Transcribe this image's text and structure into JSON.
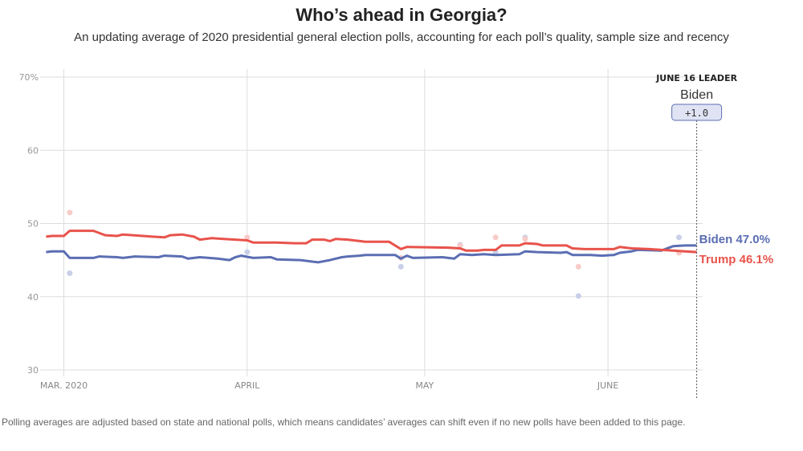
{
  "header": {
    "title": "Who’s ahead in Georgia?",
    "subtitle": "An updating average of 2020 presidential general election polls, accounting for each poll’s quality, sample size and recency"
  },
  "footnote": "Polling averages are adjusted based on state and national polls, which means candidates’ averages can shift even if no new polls have been added to this page.",
  "leader": {
    "heading": "JUNE 16 LEADER",
    "name": "Biden",
    "margin": "+1.0"
  },
  "chart_data": {
    "type": "line",
    "title": "Who’s ahead in Georgia?",
    "ylim": [
      30,
      70
    ],
    "xlim": [
      -4,
      108
    ],
    "yticks": [
      30,
      40,
      50,
      60,
      70
    ],
    "ytick_labels": [
      "30",
      "40",
      "50",
      "60",
      "70%"
    ],
    "xticks": [
      {
        "day": 0,
        "label": "MAR. 2020"
      },
      {
        "day": 31,
        "label": "APRIL"
      },
      {
        "day": 61,
        "label": "MAY"
      },
      {
        "day": 92,
        "label": "JUNE"
      }
    ],
    "grid": true,
    "colors": {
      "Biden": "#5b6eb3",
      "Trump": "#e8534b",
      "grid": "#dddddd"
    },
    "series": [
      {
        "name": "Biden",
        "color": "#5b6eb3",
        "end_label": "Biden 47.0%",
        "points": [
          [
            -3,
            46.1
          ],
          [
            -2,
            46.2
          ],
          [
            0,
            46.2
          ],
          [
            1,
            45.3
          ],
          [
            5,
            45.3
          ],
          [
            6,
            45.5
          ],
          [
            9,
            45.4
          ],
          [
            10,
            45.3
          ],
          [
            12,
            45.5
          ],
          [
            16,
            45.4
          ],
          [
            17,
            45.6
          ],
          [
            20,
            45.5
          ],
          [
            21,
            45.2
          ],
          [
            23,
            45.4
          ],
          [
            26,
            45.2
          ],
          [
            28,
            45.0
          ],
          [
            29,
            45.4
          ],
          [
            30,
            45.6
          ],
          [
            32,
            45.3
          ],
          [
            35,
            45.4
          ],
          [
            36,
            45.1
          ],
          [
            40,
            45.0
          ],
          [
            42,
            44.8
          ],
          [
            43,
            44.7
          ],
          [
            45,
            45.0
          ],
          [
            47,
            45.4
          ],
          [
            48,
            45.5
          ],
          [
            50,
            45.6
          ],
          [
            51,
            45.7
          ],
          [
            56,
            45.7
          ],
          [
            57,
            45.2
          ],
          [
            58,
            45.6
          ],
          [
            59,
            45.3
          ],
          [
            64,
            45.4
          ],
          [
            65,
            45.3
          ],
          [
            66,
            45.2
          ],
          [
            67,
            45.8
          ],
          [
            69,
            45.7
          ],
          [
            71,
            45.8
          ],
          [
            73,
            45.7
          ],
          [
            77,
            45.8
          ],
          [
            78,
            46.2
          ],
          [
            80,
            46.1
          ],
          [
            84,
            46.0
          ],
          [
            85,
            46.1
          ],
          [
            86,
            45.7
          ],
          [
            89,
            45.7
          ],
          [
            91,
            45.6
          ],
          [
            93,
            45.7
          ],
          [
            94,
            46.0
          ],
          [
            96,
            46.2
          ],
          [
            97,
            46.4
          ],
          [
            101,
            46.3
          ],
          [
            103,
            46.9
          ],
          [
            105,
            47.0
          ],
          [
            107,
            47.0
          ]
        ]
      },
      {
        "name": "Trump",
        "color": "#e8534b",
        "end_label": "Trump 46.1%",
        "points": [
          [
            -3,
            48.2
          ],
          [
            -2,
            48.3
          ],
          [
            0,
            48.3
          ],
          [
            1,
            49.0
          ],
          [
            5,
            49.0
          ],
          [
            6,
            48.7
          ],
          [
            7,
            48.4
          ],
          [
            9,
            48.3
          ],
          [
            10,
            48.5
          ],
          [
            15,
            48.2
          ],
          [
            17,
            48.1
          ],
          [
            18,
            48.4
          ],
          [
            20,
            48.5
          ],
          [
            22,
            48.2
          ],
          [
            23,
            47.8
          ],
          [
            25,
            48.0
          ],
          [
            27,
            47.9
          ],
          [
            29,
            47.8
          ],
          [
            31,
            47.7
          ],
          [
            32,
            47.4
          ],
          [
            36,
            47.4
          ],
          [
            39,
            47.3
          ],
          [
            41,
            47.3
          ],
          [
            42,
            47.8
          ],
          [
            44,
            47.8
          ],
          [
            45,
            47.6
          ],
          [
            46,
            47.9
          ],
          [
            48,
            47.8
          ],
          [
            50,
            47.6
          ],
          [
            51,
            47.5
          ],
          [
            55,
            47.5
          ],
          [
            57,
            46.5
          ],
          [
            58,
            46.8
          ],
          [
            65,
            46.7
          ],
          [
            67,
            46.6
          ],
          [
            68,
            46.3
          ],
          [
            70,
            46.3
          ],
          [
            71,
            46.4
          ],
          [
            73,
            46.4
          ],
          [
            74,
            47.0
          ],
          [
            76,
            47.0
          ],
          [
            77,
            47.0
          ],
          [
            78,
            47.3
          ],
          [
            80,
            47.2
          ],
          [
            81,
            47.0
          ],
          [
            85,
            47.0
          ],
          [
            86,
            46.6
          ],
          [
            88,
            46.5
          ],
          [
            91,
            46.5
          ],
          [
            93,
            46.5
          ],
          [
            94,
            46.8
          ],
          [
            96,
            46.6
          ],
          [
            99,
            46.5
          ],
          [
            101,
            46.4
          ],
          [
            103,
            46.3
          ],
          [
            105,
            46.2
          ],
          [
            107,
            46.1
          ]
        ]
      }
    ],
    "polls": [
      {
        "candidate": "Biden",
        "day": 1,
        "value": 43.2
      },
      {
        "candidate": "Trump",
        "day": 1,
        "value": 51.5
      },
      {
        "candidate": "Biden",
        "day": 31,
        "value": 46.1
      },
      {
        "candidate": "Trump",
        "day": 31,
        "value": 48.1
      },
      {
        "candidate": "Biden",
        "day": 57,
        "value": 44.1
      },
      {
        "candidate": "Trump",
        "day": 57,
        "value": 45.3
      },
      {
        "candidate": "Biden",
        "day": 67,
        "value": 47.1
      },
      {
        "candidate": "Trump",
        "day": 67,
        "value": 47.0
      },
      {
        "candidate": "Trump",
        "day": 73,
        "value": 48.1
      },
      {
        "candidate": "Biden",
        "day": 73,
        "value": 46.1
      },
      {
        "candidate": "Biden",
        "day": 78,
        "value": 48.1
      },
      {
        "candidate": "Trump",
        "day": 78,
        "value": 47.9
      },
      {
        "candidate": "Trump",
        "day": 87,
        "value": 44.1
      },
      {
        "candidate": "Biden",
        "day": 87,
        "value": 40.1
      },
      {
        "candidate": "Biden",
        "day": 104,
        "value": 48.1
      },
      {
        "candidate": "Trump",
        "day": 104,
        "value": 46.0
      }
    ],
    "leader_date_day": 107
  }
}
